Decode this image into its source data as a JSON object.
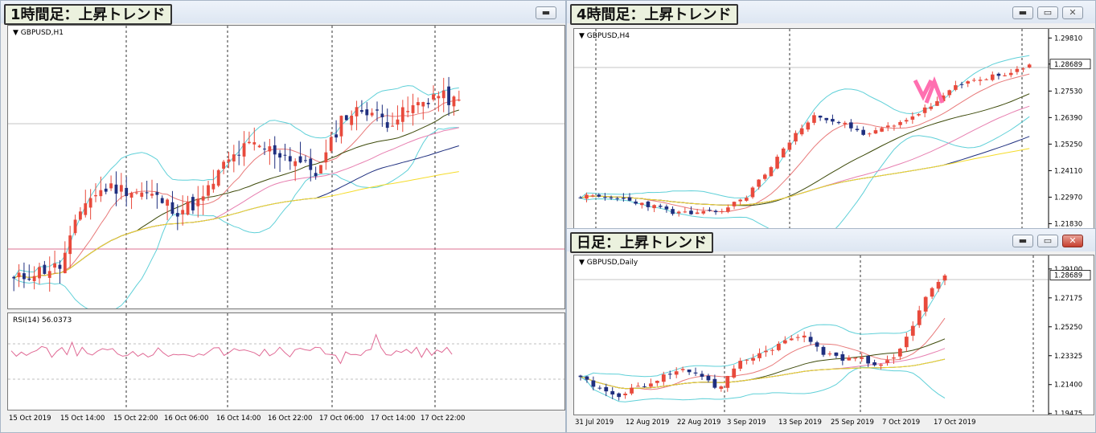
{
  "windows": [
    {
      "id": "h1",
      "title": "1時間足：上昇トレンド",
      "symbol": "GBPUSD,H1",
      "indicator": "RSI(14) 56.0373",
      "current_price": "",
      "price_ticks": [],
      "time_labels": [
        "15 Oct 2019",
        "15 Oct 14:00",
        "15 Oct 22:00",
        "16 Oct 06:00",
        "16 Oct 14:00",
        "16 Oct 22:00",
        "17 Oct 06:00",
        "17 Oct 14:00",
        "17 Oct 22:00"
      ],
      "buttons": [
        "minimize"
      ]
    },
    {
      "id": "h4",
      "title": "4時間足：上昇トレンド",
      "symbol": "GBPUSD,H4",
      "current_price": "1.28689",
      "price_ticks": [
        "1.29810",
        "1.28689",
        "1.27530",
        "1.26390",
        "1.25250",
        "1.24110",
        "1.22970",
        "1.21830"
      ],
      "time_labels": [],
      "buttons": [
        "minimize",
        "maximize",
        "close"
      ]
    },
    {
      "id": "d1",
      "title": "日足：上昇トレンド",
      "symbol": "GBPUSD,Daily",
      "current_price": "1.28689",
      "price_ticks": [
        "1.29100",
        "1.27175",
        "1.25250",
        "1.23325",
        "1.21400",
        "1.19475"
      ],
      "time_labels": [
        "31 Jul 2019",
        "12 Aug 2019",
        "22 Aug 2019",
        "3 Sep 2019",
        "13 Sep 2019",
        "25 Sep 2019",
        "7 Oct 2019",
        "17 Oct 2019"
      ],
      "buttons": [
        "minimize",
        "maximize",
        "close"
      ]
    }
  ],
  "chart_data": [
    {
      "type": "candlestick",
      "title": "1時間足：上昇トレンド",
      "symbol": "GBPUSD,H1",
      "x_labels": [
        "15 Oct 2019",
        "15 Oct 14:00",
        "15 Oct 22:00",
        "16 Oct 06:00",
        "16 Oct 14:00",
        "16 Oct 22:00",
        "17 Oct 06:00",
        "17 Oct 14:00",
        "17 Oct 22:00"
      ],
      "indicator": {
        "name": "RSI(14)",
        "value": 56.0373
      },
      "colors": {
        "up": "#e84a3c",
        "down": "#1f2f7f",
        "bb": "#5fd0d8",
        "ma1": "#e87a7a",
        "ma2": "#3d4a0a",
        "ma3": "#e77fb0",
        "ma4": "#1f2f7f",
        "ma5": "#ffe94a",
        "rsi": "#e06a95"
      }
    },
    {
      "type": "candlestick",
      "title": "4時間足：上昇トレンド",
      "symbol": "GBPUSD,H4",
      "y_ticks": [
        1.2981,
        1.28689,
        1.2753,
        1.2639,
        1.2525,
        1.2411,
        1.2297,
        1.2183
      ],
      "current_price": 1.28689
    },
    {
      "type": "candlestick",
      "title": "日足：上昇トレンド",
      "symbol": "GBPUSD,Daily",
      "x_labels": [
        "31 Jul 2019",
        "12 Aug 2019",
        "22 Aug 2019",
        "3 Sep 2019",
        "13 Sep 2019",
        "25 Sep 2019",
        "7 Oct 2019",
        "17 Oct 2019"
      ],
      "y_ticks": [
        1.291,
        1.27175,
        1.2525,
        1.23325,
        1.214,
        1.19475
      ],
      "current_price": 1.28689
    }
  ]
}
